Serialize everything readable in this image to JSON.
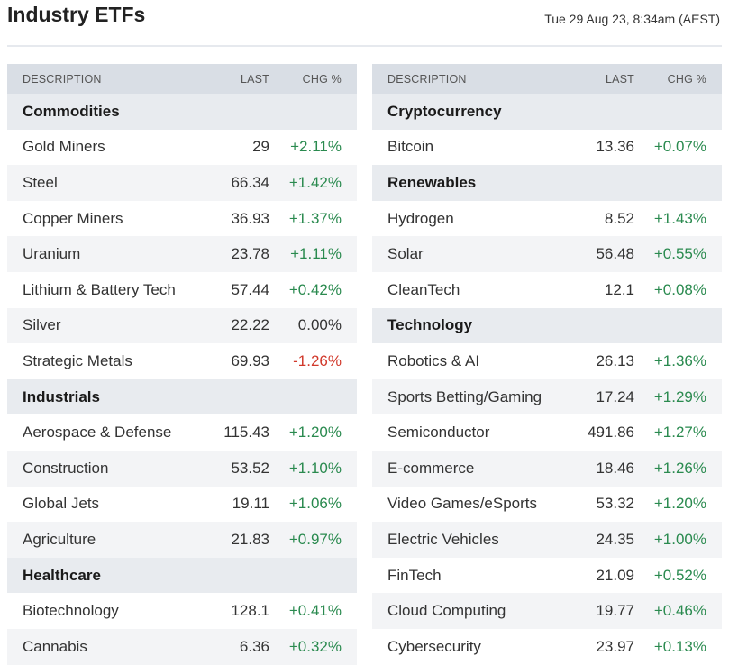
{
  "page": {
    "title": "Industry ETFs",
    "timestamp": "Tue 29 Aug 23, 8:34am (AEST)"
  },
  "columns": {
    "desc": "DESCRIPTION",
    "last": "LAST",
    "chg": "CHG %"
  },
  "colors": {
    "positive": "#2a8a4f",
    "negative": "#d1392b",
    "header_bg": "#d9dee5",
    "group_bg": "#e8ebef",
    "alt_row_bg": "#f3f4f6"
  },
  "left": {
    "groups": [
      {
        "name": "Commodities",
        "rows": [
          {
            "desc": "Gold Miners",
            "last": "29",
            "chg": "+2.11%",
            "dir": "pos"
          },
          {
            "desc": "Steel",
            "last": "66.34",
            "chg": "+1.42%",
            "dir": "pos"
          },
          {
            "desc": "Copper Miners",
            "last": "36.93",
            "chg": "+1.37%",
            "dir": "pos"
          },
          {
            "desc": "Uranium",
            "last": "23.78",
            "chg": "+1.11%",
            "dir": "pos"
          },
          {
            "desc": "Lithium & Battery Tech",
            "last": "57.44",
            "chg": "+0.42%",
            "dir": "pos"
          },
          {
            "desc": "Silver",
            "last": "22.22",
            "chg": "0.00%",
            "dir": "flat"
          },
          {
            "desc": "Strategic Metals",
            "last": "69.93",
            "chg": "-1.26%",
            "dir": "neg"
          }
        ]
      },
      {
        "name": "Industrials",
        "rows": [
          {
            "desc": "Aerospace & Defense",
            "last": "115.43",
            "chg": "+1.20%",
            "dir": "pos"
          },
          {
            "desc": "Construction",
            "last": "53.52",
            "chg": "+1.10%",
            "dir": "pos"
          },
          {
            "desc": "Global Jets",
            "last": "19.11",
            "chg": "+1.06%",
            "dir": "pos"
          },
          {
            "desc": "Agriculture",
            "last": "21.83",
            "chg": "+0.97%",
            "dir": "pos"
          }
        ]
      },
      {
        "name": "Healthcare",
        "rows": [
          {
            "desc": "Biotechnology",
            "last": "128.1",
            "chg": "+0.41%",
            "dir": "pos"
          },
          {
            "desc": "Cannabis",
            "last": "6.36",
            "chg": "+0.32%",
            "dir": "pos"
          }
        ]
      }
    ]
  },
  "right": {
    "groups": [
      {
        "name": "Cryptocurrency",
        "rows": [
          {
            "desc": "Bitcoin",
            "last": "13.36",
            "chg": "+0.07%",
            "dir": "pos"
          }
        ]
      },
      {
        "name": "Renewables",
        "rows": [
          {
            "desc": "Hydrogen",
            "last": "8.52",
            "chg": "+1.43%",
            "dir": "pos"
          },
          {
            "desc": "Solar",
            "last": "56.48",
            "chg": "+0.55%",
            "dir": "pos"
          },
          {
            "desc": "CleanTech",
            "last": "12.1",
            "chg": "+0.08%",
            "dir": "pos"
          }
        ]
      },
      {
        "name": "Technology",
        "rows": [
          {
            "desc": "Robotics & AI",
            "last": "26.13",
            "chg": "+1.36%",
            "dir": "pos"
          },
          {
            "desc": "Sports Betting/Gaming",
            "last": "17.24",
            "chg": "+1.29%",
            "dir": "pos"
          },
          {
            "desc": "Semiconductor",
            "last": "491.86",
            "chg": "+1.27%",
            "dir": "pos"
          },
          {
            "desc": "E-commerce",
            "last": "18.46",
            "chg": "+1.26%",
            "dir": "pos"
          },
          {
            "desc": "Video Games/eSports",
            "last": "53.32",
            "chg": "+1.20%",
            "dir": "pos"
          },
          {
            "desc": "Electric Vehicles",
            "last": "24.35",
            "chg": "+1.00%",
            "dir": "pos"
          },
          {
            "desc": "FinTech",
            "last": "21.09",
            "chg": "+0.52%",
            "dir": "pos"
          },
          {
            "desc": "Cloud Computing",
            "last": "19.77",
            "chg": "+0.46%",
            "dir": "pos"
          },
          {
            "desc": "Cybersecurity",
            "last": "23.97",
            "chg": "+0.13%",
            "dir": "pos"
          }
        ]
      }
    ]
  }
}
